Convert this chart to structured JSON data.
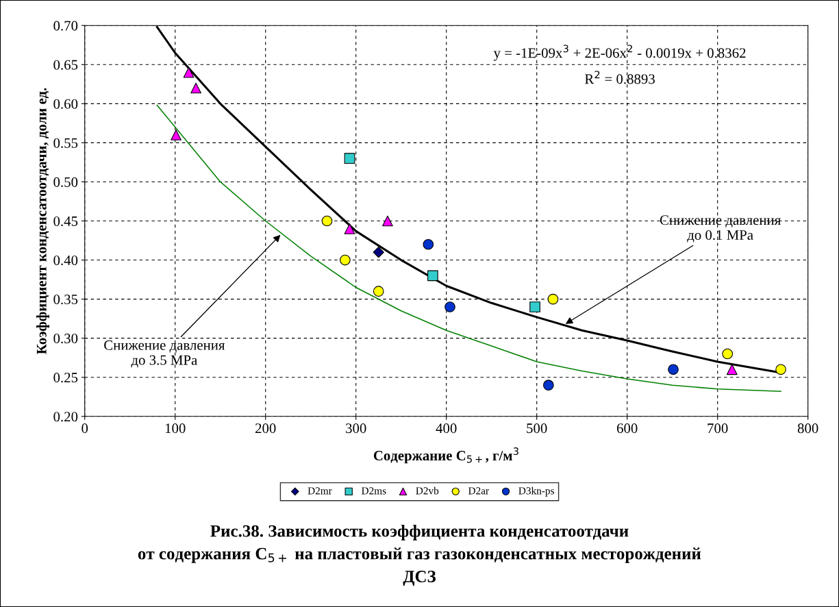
{
  "chart_data": {
    "type": "scatter",
    "title": "Рис.38. Зависимость коэффициента конденсатоотдачи\nот содержания C$_{5+}$ на пластовый газ газоконденсатных месторождений\nДСЗ",
    "xlabel": "Содержание C$_{5+}$, г/м$^{3}$",
    "ylabel": "Коэффициент конденсатоотдачи, доли ед.",
    "xlim": [
      0,
      800
    ],
    "xticks": [
      0,
      100,
      200,
      300,
      400,
      500,
      600,
      700,
      800
    ],
    "ylim": [
      0.2,
      0.7
    ],
    "yticks": [
      {
        "value": 0.2,
        "label": "0.20"
      },
      {
        "value": 0.25,
        "label": "0.25"
      },
      {
        "value": 0.3,
        "label": "0.30"
      },
      {
        "value": 0.35,
        "label": "0.35"
      },
      {
        "value": 0.4,
        "label": "0.40"
      },
      {
        "value": 0.45,
        "label": "0.45"
      },
      {
        "value": 0.5,
        "label": "0.50"
      },
      {
        "value": 0.55,
        "label": "0.55"
      },
      {
        "value": 0.6,
        "label": "0.60"
      },
      {
        "value": 0.65,
        "label": "0.65"
      },
      {
        "value": 0.7,
        "label": "0.70"
      }
    ],
    "grid": true,
    "legend": "bottom",
    "series": [
      {
        "type": "line",
        "color": "#000000",
        "marker": "none",
        "x": [
          80,
          100,
          150,
          200,
          250,
          300,
          350,
          400,
          450,
          500,
          550,
          600,
          650,
          700,
          770
        ],
        "values": [
          0.698,
          0.665,
          0.6,
          0.545,
          0.49,
          0.437,
          0.4,
          0.367,
          0.345,
          0.327,
          0.31,
          0.297,
          0.283,
          0.27,
          0.256
        ]
      },
      {
        "type": "line",
        "color": "#008000",
        "marker": "none",
        "x": [
          80,
          100,
          150,
          200,
          250,
          300,
          350,
          400,
          450,
          500,
          550,
          600,
          650,
          700,
          770
        ],
        "values": [
          0.598,
          0.57,
          0.5,
          0.45,
          0.405,
          0.365,
          0.335,
          0.31,
          0.29,
          0.27,
          0.258,
          0.248,
          0.24,
          0.235,
          0.232
        ]
      },
      {
        "name": "D2mr",
        "color": "#000080",
        "marker": "diamond",
        "x": [
          325
        ],
        "values": [
          0.41
        ]
      },
      {
        "name": "D2ms",
        "color": "#33cccc",
        "marker": "square",
        "x": [
          293,
          385,
          498
        ],
        "values": [
          0.53,
          0.38,
          0.34
        ]
      },
      {
        "name": "D2vb",
        "color": "#ff00ff",
        "marker": "triangle",
        "x": [
          101,
          115,
          123,
          293,
          335,
          716
        ],
        "values": [
          0.56,
          0.64,
          0.62,
          0.44,
          0.45,
          0.26
        ]
      },
      {
        "name": "D2ar",
        "color": "#ffff00",
        "marker": "circle",
        "x": [
          268,
          288,
          325,
          518,
          711,
          770
        ],
        "values": [
          0.45,
          0.4,
          0.36,
          0.35,
          0.28,
          0.26
        ]
      },
      {
        "name": "D3kn-ps",
        "color": "#0033cc",
        "marker": "circle",
        "x": [
          380,
          404,
          513,
          651
        ],
        "values": [
          0.42,
          0.34,
          0.24,
          0.26
        ]
      }
    ],
    "annotations": [
      "y = -1E-09x$^{3}$ + 2E-06x$^{2}$ - 0.0019x + 0.8362",
      "R$^{2}$ = 0.8893",
      {
        "text": "Снижение давления\nдо 0.1 MPa",
        "x": 530,
        "y": 0.317
      },
      {
        "text": "Снижение давления\nдо 3.5 MPa",
        "x": 218,
        "y": 0.434
      }
    ]
  }
}
